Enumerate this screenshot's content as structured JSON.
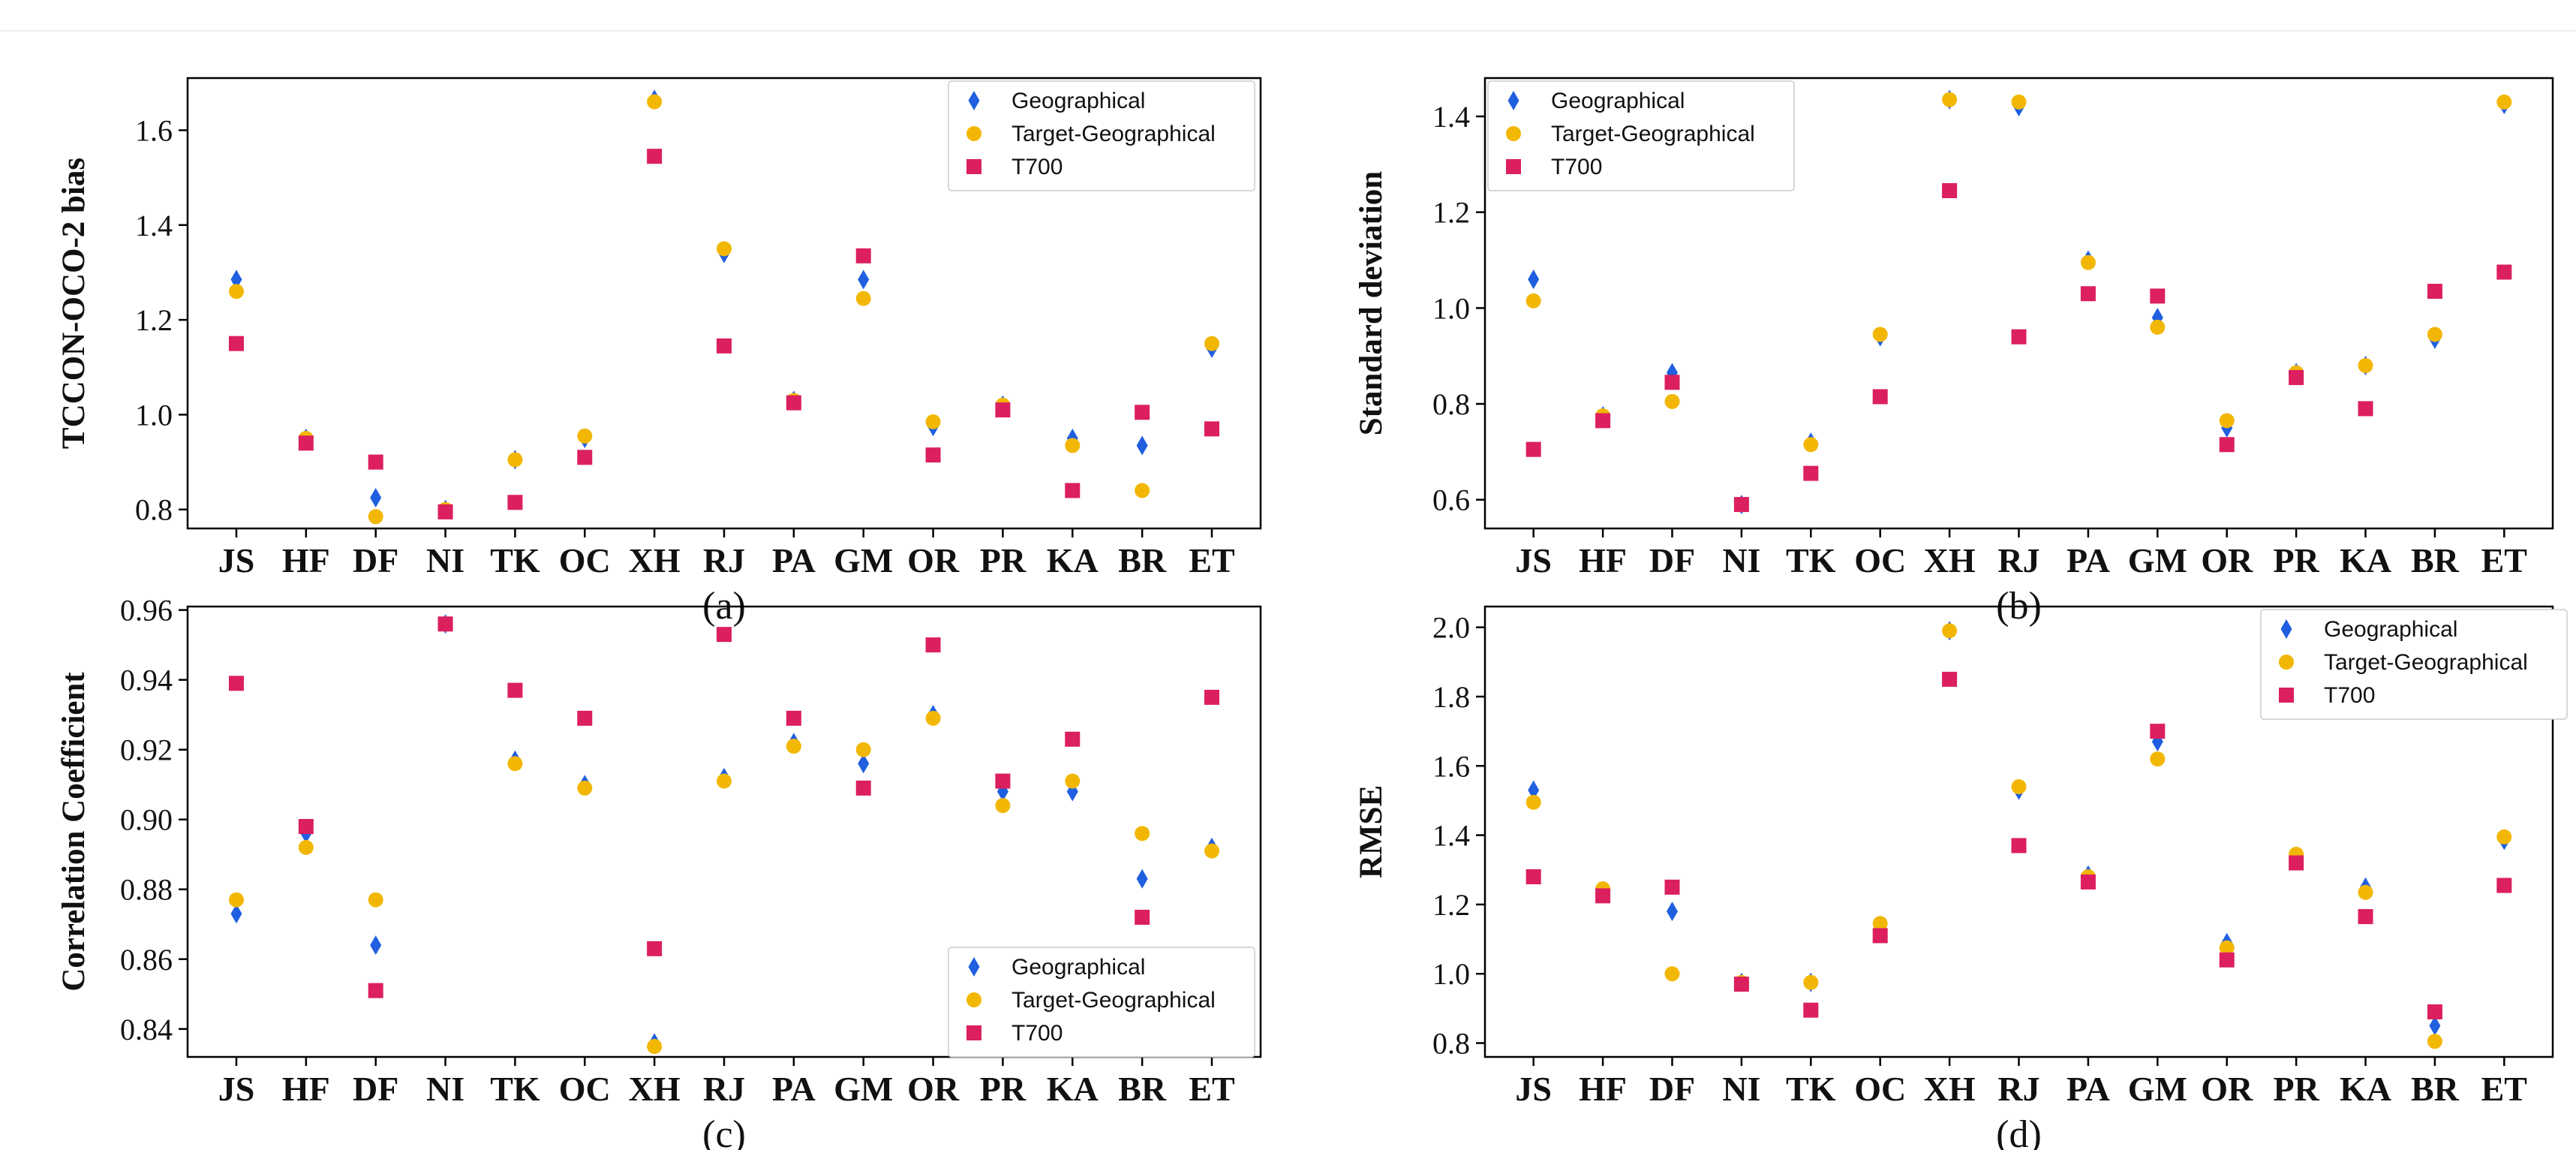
{
  "chart_data": [
    {
      "type": "scatter",
      "panel": "(a)",
      "ylabel": "TCCON-OCO-2 bias",
      "caption": "(a)",
      "categories": [
        "JS",
        "HF",
        "DF",
        "NI",
        "TK",
        "OC",
        "XH",
        "RJ",
        "PA",
        "GM",
        "OR",
        "PR",
        "KA",
        "BR",
        "ET"
      ],
      "ylim": [
        0.76,
        1.71
      ],
      "yticks": [
        0.8,
        1.0,
        1.2,
        1.4,
        1.6
      ],
      "ytick_labels": [
        "0.8",
        "1.0",
        "1.2",
        "1.4",
        "1.6"
      ],
      "legend_position": "top-right",
      "series": [
        {
          "name": "Geographical",
          "marker": "diamond",
          "color": "#1f5fe0",
          "values": [
            1.285,
            0.95,
            0.825,
            0.8,
            0.905,
            0.95,
            1.665,
            1.34,
            1.03,
            1.285,
            0.975,
            1.02,
            0.95,
            0.935,
            1.14
          ]
        },
        {
          "name": "Target-Geographical",
          "marker": "circle",
          "color": "#f2b705",
          "values": [
            1.26,
            0.95,
            0.785,
            0.8,
            0.905,
            0.955,
            1.66,
            1.35,
            1.03,
            1.245,
            0.985,
            1.02,
            0.935,
            0.84,
            1.15
          ]
        },
        {
          "name": "T700",
          "marker": "square",
          "color": "#dc1f5f",
          "values": [
            1.15,
            0.94,
            0.9,
            0.795,
            0.815,
            0.91,
            1.545,
            1.145,
            1.025,
            1.335,
            0.915,
            1.01,
            0.84,
            1.005,
            0.97
          ]
        }
      ]
    },
    {
      "type": "scatter",
      "panel": "(b)",
      "ylabel": "Standard deviation",
      "caption": "(b)",
      "categories": [
        "JS",
        "HF",
        "DF",
        "NI",
        "TK",
        "OC",
        "XH",
        "RJ",
        "PA",
        "GM",
        "OR",
        "PR",
        "KA",
        "BR",
        "ET"
      ],
      "ylim": [
        0.54,
        1.48
      ],
      "yticks": [
        0.6,
        0.8,
        1.0,
        1.2,
        1.4
      ],
      "ytick_labels": [
        "0.6",
        "0.8",
        "1.0",
        "1.2",
        "1.4"
      ],
      "legend_position": "top-left",
      "series": [
        {
          "name": "Geographical",
          "marker": "diamond",
          "color": "#1f5fe0",
          "values": [
            1.06,
            0.775,
            0.865,
            0.59,
            0.72,
            0.94,
            1.435,
            1.42,
            1.1,
            0.98,
            0.75,
            0.865,
            0.88,
            0.935,
            1.425
          ]
        },
        {
          "name": "Target-Geographical",
          "marker": "circle",
          "color": "#f2b705",
          "values": [
            1.015,
            0.775,
            0.805,
            0.59,
            0.715,
            0.945,
            1.435,
            1.43,
            1.095,
            0.96,
            0.765,
            0.865,
            0.88,
            0.945,
            1.43
          ]
        },
        {
          "name": "T700",
          "marker": "square",
          "color": "#dc1f5f",
          "values": [
            0.705,
            0.765,
            0.845,
            0.59,
            0.655,
            0.815,
            1.245,
            0.94,
            1.03,
            1.025,
            0.715,
            0.855,
            0.79,
            1.035,
            1.075
          ]
        }
      ]
    },
    {
      "type": "scatter",
      "panel": "(c)",
      "ylabel": "Correlation Coefficient",
      "caption": "(c)",
      "categories": [
        "JS",
        "HF",
        "DF",
        "NI",
        "TK",
        "OC",
        "XH",
        "RJ",
        "PA",
        "GM",
        "OR",
        "PR",
        "KA",
        "BR",
        "ET"
      ],
      "ylim": [
        0.832,
        0.961
      ],
      "yticks": [
        0.84,
        0.86,
        0.88,
        0.9,
        0.92,
        0.94,
        0.96
      ],
      "ytick_labels": [
        "0.84",
        "0.86",
        "0.88",
        "0.90",
        "0.92",
        "0.94",
        "0.96"
      ],
      "legend_position": "bottom-right",
      "series": [
        {
          "name": "Geographical",
          "marker": "diamond",
          "color": "#1f5fe0",
          "values": [
            0.873,
            0.896,
            0.864,
            0.956,
            0.917,
            0.91,
            0.836,
            0.912,
            0.922,
            0.916,
            0.93,
            0.908,
            0.908,
            0.883,
            0.892
          ]
        },
        {
          "name": "Target-Geographical",
          "marker": "circle",
          "color": "#f2b705",
          "values": [
            0.877,
            0.892,
            0.877,
            0.956,
            0.916,
            0.909,
            0.835,
            0.911,
            0.921,
            0.92,
            0.929,
            0.904,
            0.911,
            0.896,
            0.891
          ]
        },
        {
          "name": "T700",
          "marker": "square",
          "color": "#dc1f5f",
          "values": [
            0.939,
            0.898,
            0.851,
            0.956,
            0.937,
            0.929,
            0.863,
            0.953,
            0.929,
            0.909,
            0.95,
            0.911,
            0.923,
            0.872,
            0.935
          ]
        }
      ]
    },
    {
      "type": "scatter",
      "panel": "(d)",
      "ylabel": "RMSE",
      "caption": "(d)",
      "categories": [
        "JS",
        "HF",
        "DF",
        "NI",
        "TK",
        "OC",
        "XH",
        "RJ",
        "PA",
        "GM",
        "OR",
        "PR",
        "KA",
        "BR",
        "ET"
      ],
      "ylim": [
        0.76,
        2.06
      ],
      "yticks": [
        0.8,
        1.0,
        1.2,
        1.4,
        1.6,
        1.8,
        2.0
      ],
      "ytick_labels": [
        "0.8",
        "1.0",
        "1.2",
        "1.4",
        "1.6",
        "1.8",
        "2.0"
      ],
      "legend_position": "top-right",
      "series": [
        {
          "name": "Geographical",
          "marker": "diamond",
          "color": "#1f5fe0",
          "values": [
            1.53,
            1.24,
            1.18,
            0.975,
            0.975,
            1.14,
            1.99,
            1.53,
            1.285,
            1.67,
            1.09,
            1.34,
            1.25,
            0.85,
            1.385
          ]
        },
        {
          "name": "Target-Geographical",
          "marker": "circle",
          "color": "#f2b705",
          "values": [
            1.495,
            1.245,
            1.0,
            0.975,
            0.975,
            1.145,
            1.99,
            1.54,
            1.28,
            1.62,
            1.075,
            1.345,
            1.235,
            0.805,
            1.395
          ]
        },
        {
          "name": "T700",
          "marker": "square",
          "color": "#dc1f5f",
          "values": [
            1.28,
            1.225,
            1.25,
            0.97,
            0.895,
            1.11,
            1.85,
            1.37,
            1.265,
            1.7,
            1.04,
            1.32,
            1.165,
            0.89,
            1.255
          ]
        }
      ]
    }
  ]
}
